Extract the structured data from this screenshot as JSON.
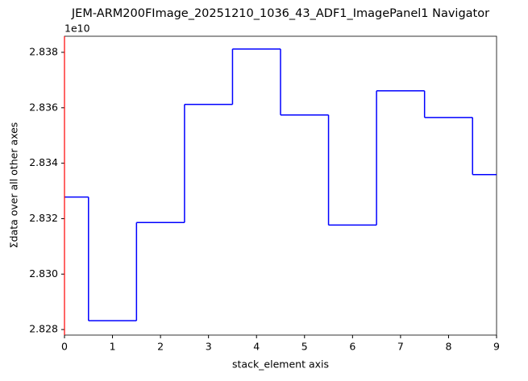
{
  "chart_data": {
    "type": "step",
    "title": "JEM-ARM200FImage_20251210_1036_43_ADF1_ImagePanel1 Navigator",
    "xlabel": "stack_element axis",
    "ylabel": "Σdata over all other axes",
    "y_offset_label": "1e10",
    "x": [
      0,
      1,
      2,
      3,
      4,
      5,
      6,
      7,
      8,
      9
    ],
    "values": [
      2.83278,
      2.82832,
      2.83186,
      2.83612,
      2.83812,
      2.83574,
      2.83177,
      2.83661,
      2.83565,
      2.83359
    ],
    "color": "#0000ff",
    "step_where": "mid",
    "xlim": [
      0,
      9
    ],
    "xticks": [
      0,
      1,
      2,
      3,
      4,
      5,
      6,
      7,
      8,
      9
    ],
    "ylim": [
      2.8278,
      2.83858
    ],
    "yticks": [
      2.828,
      {
        "value": 2.83,
        "label": "2.830"
      },
      2.832,
      2.834,
      2.836,
      2.838
    ],
    "indicator": {
      "x": 0,
      "color": "#ff0000"
    }
  }
}
